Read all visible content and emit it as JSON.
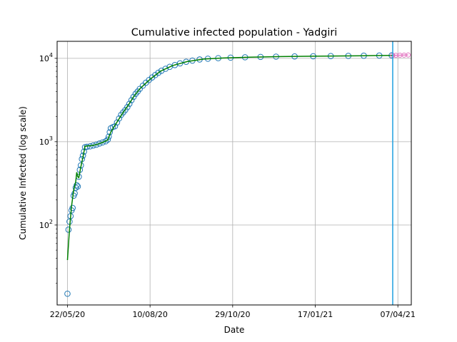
{
  "chart_data": {
    "type": "scatter",
    "title": "Cumulative infected population - Yadgiri",
    "xlabel": "Date",
    "ylabel": "Cumulative Infected (log scale)",
    "x_axis": {
      "type": "date",
      "range": [
        "2020-05-12",
        "2021-04-20"
      ],
      "ticks": [
        "22/05/20",
        "10/08/20",
        "29/10/20",
        "17/01/21",
        "07/04/21"
      ]
    },
    "y_axis": {
      "scale": "log",
      "range": [
        11,
        16000
      ],
      "ticks": [
        {
          "value": 100,
          "label": "10^2"
        },
        {
          "value": 1000,
          "label": "10^3"
        },
        {
          "value": 10000,
          "label": "10^4"
        }
      ]
    },
    "grid": true,
    "vertical_line": {
      "date": "2021-04-02",
      "color": "#1f9fe0"
    },
    "observed_color": "#1f77b4",
    "fit_color": "#008000",
    "forecast_color": "#e377c2",
    "observed": [
      [
        "2020-05-22",
        15
      ],
      [
        "2020-05-23",
        88
      ],
      [
        "2020-05-24",
        110
      ],
      [
        "2020-05-25",
        128
      ],
      [
        "2020-05-26",
        150
      ],
      [
        "2020-05-27",
        160
      ],
      [
        "2020-05-28",
        225
      ],
      [
        "2020-05-29",
        240
      ],
      [
        "2020-05-30",
        280
      ],
      [
        "2020-05-31",
        300
      ],
      [
        "2020-06-01",
        290
      ],
      [
        "2020-06-02",
        380
      ],
      [
        "2020-06-03",
        460
      ],
      [
        "2020-06-04",
        520
      ],
      [
        "2020-06-05",
        620
      ],
      [
        "2020-06-06",
        680
      ],
      [
        "2020-06-07",
        760
      ],
      [
        "2020-06-08",
        860
      ],
      [
        "2020-06-10",
        870
      ],
      [
        "2020-06-13",
        880
      ],
      [
        "2020-06-16",
        900
      ],
      [
        "2020-06-19",
        920
      ],
      [
        "2020-06-22",
        950
      ],
      [
        "2020-06-25",
        980
      ],
      [
        "2020-06-28",
        1010
      ],
      [
        "2020-06-30",
        1060
      ],
      [
        "2020-07-01",
        1150
      ],
      [
        "2020-07-02",
        1300
      ],
      [
        "2020-07-03",
        1450
      ],
      [
        "2020-07-05",
        1500
      ],
      [
        "2020-07-07",
        1530
      ],
      [
        "2020-07-09",
        1700
      ],
      [
        "2020-07-11",
        1900
      ],
      [
        "2020-07-13",
        2100
      ],
      [
        "2020-07-15",
        2250
      ],
      [
        "2020-07-17",
        2400
      ],
      [
        "2020-07-19",
        2600
      ],
      [
        "2020-07-21",
        2850
      ],
      [
        "2020-07-23",
        3150
      ],
      [
        "2020-07-25",
        3450
      ],
      [
        "2020-07-27",
        3750
      ],
      [
        "2020-07-29",
        4000
      ],
      [
        "2020-07-31",
        4300
      ],
      [
        "2020-08-03",
        4700
      ],
      [
        "2020-08-06",
        5100
      ],
      [
        "2020-08-09",
        5500
      ],
      [
        "2020-08-12",
        5900
      ],
      [
        "2020-08-15",
        6300
      ],
      [
        "2020-08-18",
        6700
      ],
      [
        "2020-08-21",
        7100
      ],
      [
        "2020-08-25",
        7500
      ],
      [
        "2020-08-29",
        7900
      ],
      [
        "2020-09-03",
        8300
      ],
      [
        "2020-09-08",
        8700
      ],
      [
        "2020-09-14",
        9100
      ],
      [
        "2020-09-20",
        9400
      ],
      [
        "2020-09-27",
        9700
      ],
      [
        "2020-10-05",
        9900
      ],
      [
        "2020-10-15",
        10050
      ],
      [
        "2020-10-27",
        10200
      ],
      [
        "2020-11-10",
        10300
      ],
      [
        "2020-11-25",
        10400
      ],
      [
        "2020-12-10",
        10480
      ],
      [
        "2020-12-28",
        10550
      ],
      [
        "2021-01-15",
        10600
      ],
      [
        "2021-02-01",
        10650
      ],
      [
        "2021-02-18",
        10700
      ],
      [
        "2021-03-05",
        10750
      ],
      [
        "2021-03-20",
        10800
      ],
      [
        "2021-04-01",
        10850
      ]
    ],
    "fit": [
      [
        "2020-05-22",
        38
      ],
      [
        "2020-05-24",
        90
      ],
      [
        "2020-05-26",
        170
      ],
      [
        "2020-05-28",
        260
      ],
      [
        "2020-05-30",
        330
      ],
      [
        "2020-05-31",
        430
      ],
      [
        "2020-06-01",
        380
      ],
      [
        "2020-06-02",
        370
      ],
      [
        "2020-06-04",
        500
      ],
      [
        "2020-06-06",
        650
      ],
      [
        "2020-06-08",
        880
      ],
      [
        "2020-06-11",
        890
      ],
      [
        "2020-06-15",
        900
      ],
      [
        "2020-06-20",
        930
      ],
      [
        "2020-06-25",
        980
      ],
      [
        "2020-06-30",
        1050
      ],
      [
        "2020-07-03",
        1300
      ],
      [
        "2020-07-06",
        1500
      ],
      [
        "2020-07-10",
        1800
      ],
      [
        "2020-07-15",
        2250
      ],
      [
        "2020-07-20",
        2750
      ],
      [
        "2020-07-25",
        3450
      ],
      [
        "2020-07-31",
        4300
      ],
      [
        "2020-08-10",
        5600
      ],
      [
        "2020-08-20",
        7000
      ],
      [
        "2020-09-01",
        8200
      ],
      [
        "2020-09-15",
        9150
      ],
      [
        "2020-10-01",
        9800
      ],
      [
        "2020-10-20",
        10100
      ],
      [
        "2020-11-15",
        10320
      ],
      [
        "2020-12-15",
        10500
      ],
      [
        "2021-01-15",
        10600
      ],
      [
        "2021-02-15",
        10690
      ],
      [
        "2021-03-15",
        10780
      ],
      [
        "2021-04-02",
        10850
      ]
    ],
    "forecast": [
      [
        "2021-04-02",
        10860
      ],
      [
        "2021-04-05",
        10880
      ],
      [
        "2021-04-09",
        10910
      ],
      [
        "2021-04-13",
        10940
      ],
      [
        "2021-04-17",
        10970
      ]
    ]
  }
}
